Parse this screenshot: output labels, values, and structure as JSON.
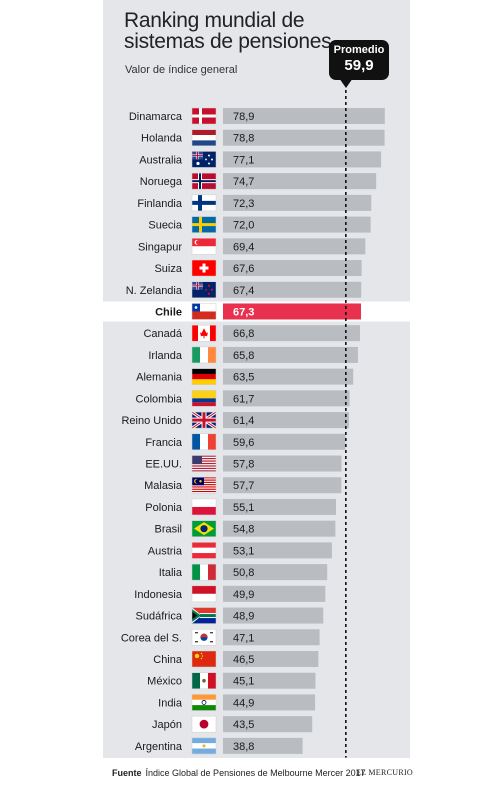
{
  "header": {
    "title": "Ranking mundial de sistemas de pensiones",
    "subtitle": "Valor de índice general"
  },
  "average": {
    "label": "Promedio",
    "value_label": "59,9"
  },
  "footer": {
    "source_label": "Fuente",
    "source_text": "Índice Global de Pensiones de Melbourne Mercer 2017",
    "brand": "EL MERCURIO"
  },
  "colors": {
    "panel": "#e4e6e9",
    "bar": "#b9bcc1",
    "highlight": "#e8304f",
    "text": "#1a1a1a"
  },
  "chart_data": {
    "type": "bar",
    "orientation": "horizontal",
    "title": "Ranking mundial de sistemas de pensiones",
    "subtitle": "Valor de índice general",
    "categories": [
      "Dinamarca",
      "Holanda",
      "Australia",
      "Noruega",
      "Finlandia",
      "Suecia",
      "Singapur",
      "Suiza",
      "N. Zelandia",
      "Chile",
      "Canadá",
      "Irlanda",
      "Alemania",
      "Colombia",
      "Reino Unido",
      "Francia",
      "EE.UU.",
      "Malasia",
      "Polonia",
      "Brasil",
      "Austria",
      "Italia",
      "Indonesia",
      "Sudáfrica",
      "Corea del S.",
      "China",
      "México",
      "India",
      "Japón",
      "Argentina"
    ],
    "values": [
      78.9,
      78.8,
      77.1,
      74.7,
      72.3,
      72.0,
      69.4,
      67.6,
      67.4,
      67.3,
      66.8,
      65.8,
      63.5,
      61.7,
      61.4,
      59.6,
      57.8,
      57.7,
      55.1,
      54.8,
      53.1,
      50.8,
      49.9,
      48.9,
      47.1,
      46.5,
      45.1,
      44.9,
      43.5,
      38.8
    ],
    "value_labels": [
      "78,9",
      "78,8",
      "77,1",
      "74,7",
      "72,3",
      "72,0",
      "69,4",
      "67,6",
      "67,4",
      "67,3",
      "66,8",
      "65,8",
      "63,5",
      "61,7",
      "61,4",
      "59,6",
      "57,8",
      "57,7",
      "55,1",
      "54,8",
      "53,1",
      "50,8",
      "49,9",
      "48,9",
      "47,1",
      "46,5",
      "45,1",
      "44,9",
      "43,5",
      "38,8"
    ],
    "flags": [
      "denmark-flag",
      "netherlands-flag",
      "australia-flag",
      "norway-flag",
      "finland-flag",
      "sweden-flag",
      "singapore-flag",
      "switzerland-flag",
      "new-zealand-flag",
      "chile-flag",
      "canada-flag",
      "ireland-flag",
      "germany-flag",
      "colombia-flag",
      "uk-flag",
      "france-flag",
      "usa-flag",
      "malaysia-flag",
      "poland-flag",
      "brazil-flag",
      "austria-flag",
      "italy-flag",
      "indonesia-flag",
      "south-africa-flag",
      "south-korea-flag",
      "china-flag",
      "mexico-flag",
      "india-flag",
      "japan-flag",
      "argentina-flag"
    ],
    "highlight": "Chile",
    "average_line": 59.9,
    "xlim": [
      0,
      79
    ],
    "grid": false,
    "legend": "none"
  }
}
